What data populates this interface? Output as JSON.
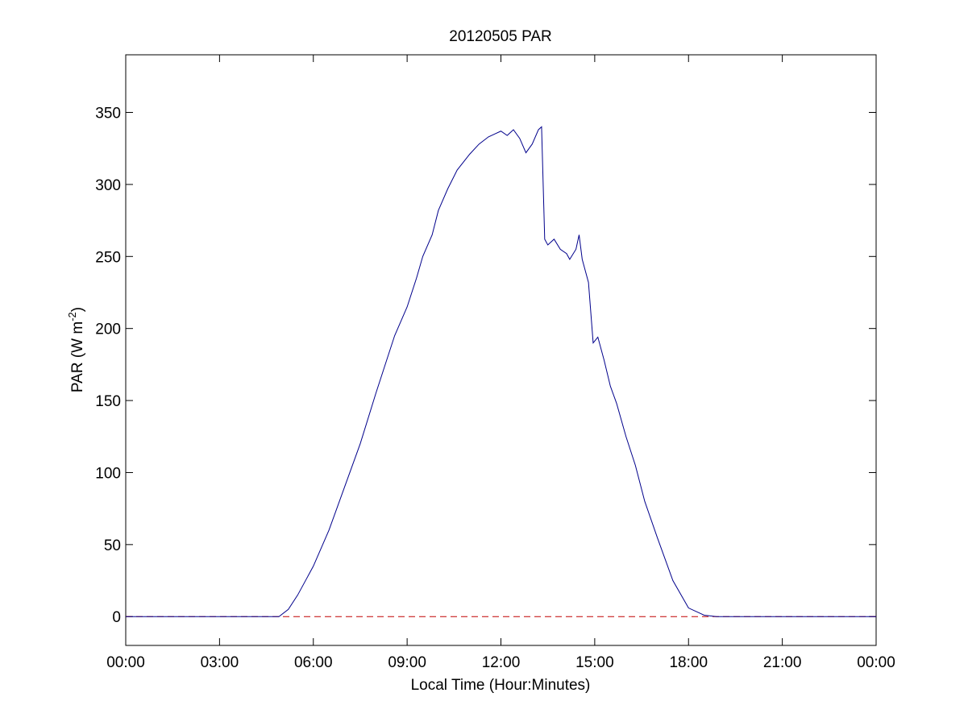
{
  "chart_data": {
    "type": "line",
    "title": "20120505 PAR",
    "xlabel": "Local Time (Hour:Minutes)",
    "ylabel": {
      "text": "PAR (W m",
      "sup": "-2",
      "suffix": ")"
    },
    "xlim": [
      0,
      24
    ],
    "ylim": [
      -20,
      390
    ],
    "x_ticks": [
      0,
      3,
      6,
      9,
      12,
      15,
      18,
      21,
      24
    ],
    "x_tick_labels": [
      "00:00",
      "03:00",
      "06:00",
      "09:00",
      "12:00",
      "15:00",
      "18:00",
      "21:00",
      "00:00"
    ],
    "y_ticks": [
      0,
      50,
      100,
      150,
      200,
      250,
      300,
      350
    ],
    "y_tick_labels": [
      "0",
      "50",
      "100",
      "150",
      "200",
      "250",
      "300",
      "350"
    ],
    "grid": false,
    "colors": {
      "series": "#00008b",
      "zero_line": "#c00000",
      "axes": "#000000"
    },
    "series": [
      {
        "style": "solid",
        "x_unit": "hours",
        "x": [
          0,
          4.9,
          5.2,
          5.5,
          6.0,
          6.5,
          7.0,
          7.5,
          8.0,
          8.3,
          8.6,
          9.0,
          9.3,
          9.5,
          9.8,
          10.0,
          10.3,
          10.6,
          11.0,
          11.3,
          11.6,
          11.8,
          12.0,
          12.2,
          12.4,
          12.6,
          12.8,
          13.0,
          13.2,
          13.3,
          13.4,
          13.5,
          13.7,
          13.9,
          14.1,
          14.2,
          14.4,
          14.5,
          14.6,
          14.8,
          14.95,
          15.1,
          15.3,
          15.5,
          15.7,
          16.0,
          16.3,
          16.6,
          17.0,
          17.5,
          18.0,
          18.5,
          18.9,
          19.2,
          20.0,
          22.0,
          24.0
        ],
        "y": [
          0,
          0,
          5,
          15,
          35,
          60,
          90,
          120,
          155,
          175,
          195,
          215,
          235,
          250,
          265,
          282,
          297,
          310,
          321,
          328,
          333,
          335,
          337,
          334,
          338,
          332,
          322,
          328,
          338,
          340,
          262,
          258,
          262,
          255,
          252,
          248,
          255,
          265,
          248,
          232,
          190,
          194,
          178,
          160,
          148,
          125,
          105,
          80,
          55,
          25,
          6,
          1,
          0,
          0,
          0,
          0,
          0
        ]
      },
      {
        "style": "dashed",
        "x_unit": "hours",
        "x": [
          0,
          24
        ],
        "y": [
          0,
          0
        ]
      }
    ]
  }
}
